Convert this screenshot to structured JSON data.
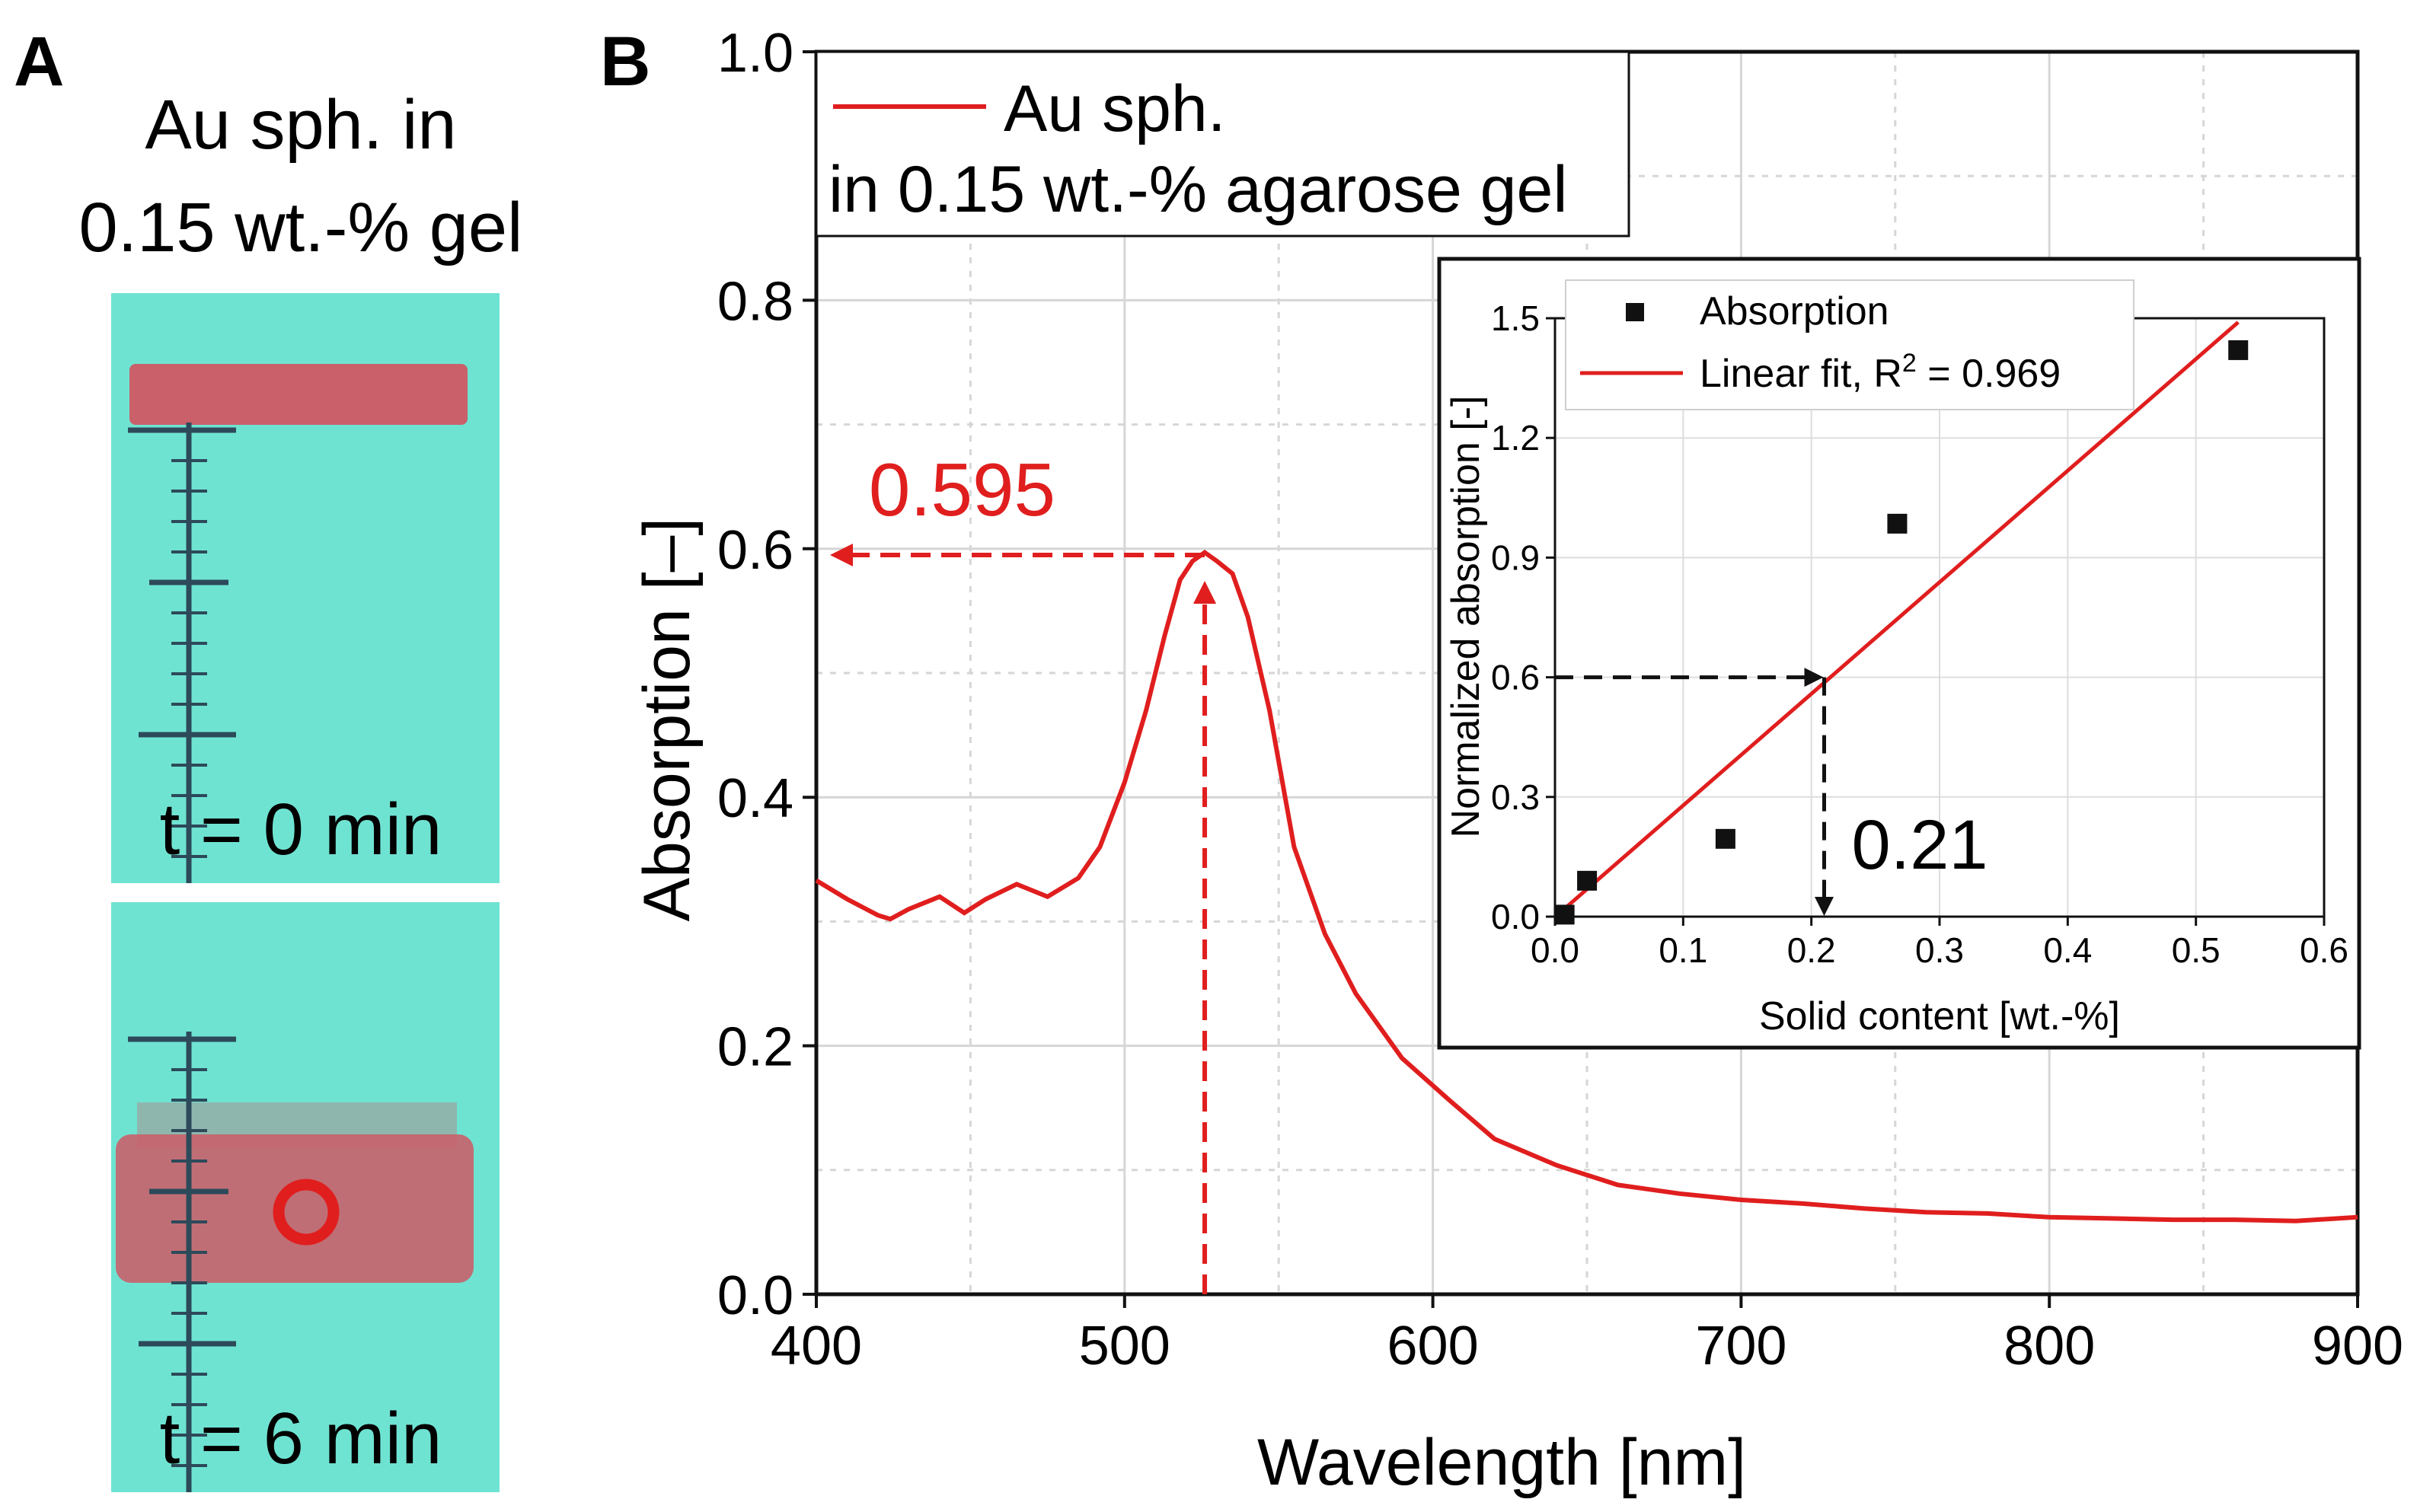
{
  "colors": {
    "curve": "#e01e1e",
    "gel_background": "#6fe3d2",
    "gel_sample": "#c9606a",
    "ruler": "#2c4a5a",
    "black": "#111111",
    "grid": "#d6d6d6"
  },
  "panel_a": {
    "label": "A",
    "title_line1": "Au sph. in",
    "title_line2": "0.15 wt.-% gel",
    "photo_top_time": "t = 0 min",
    "photo_bottom_time": "t = 6 min"
  },
  "panel_b": {
    "label": "B"
  },
  "chart_data": [
    {
      "type": "line",
      "title": "",
      "xlabel": "Wavelength [nm]",
      "ylabel": "Absorption [–]",
      "xlim": [
        400,
        900
      ],
      "ylim": [
        0.0,
        1.0
      ],
      "x_ticks": [
        "400",
        "500",
        "600",
        "700",
        "800",
        "900"
      ],
      "y_ticks": [
        "0.0",
        "0.2",
        "0.4",
        "0.6",
        "0.8",
        "1.0"
      ],
      "x_tick_values": [
        400,
        500,
        600,
        700,
        800,
        900
      ],
      "y_tick_values": [
        0.0,
        0.2,
        0.4,
        0.6,
        0.8,
        1.0
      ],
      "grid": true,
      "legend_position": "top-left",
      "legend_line1": "Au sph.",
      "legend_line2": "in 0.15 wt.-% agarose gel",
      "series": [
        {
          "name": "Au sph. in 0.15 wt.-% agarose gel",
          "x": [
            400,
            410,
            420,
            424,
            430,
            440,
            448,
            455,
            465,
            475,
            485,
            492,
            500,
            507,
            513,
            518,
            522,
            526,
            530,
            535,
            540,
            547,
            555,
            565,
            575,
            590,
            605,
            620,
            640,
            660,
            680,
            700,
            720,
            740,
            760,
            780,
            800,
            820,
            840,
            860,
            880,
            900
          ],
          "y": [
            0.333,
            0.318,
            0.305,
            0.302,
            0.31,
            0.32,
            0.307,
            0.318,
            0.33,
            0.32,
            0.335,
            0.36,
            0.412,
            0.47,
            0.53,
            0.575,
            0.59,
            0.597,
            0.59,
            0.58,
            0.545,
            0.47,
            0.36,
            0.29,
            0.242,
            0.19,
            0.157,
            0.125,
            0.104,
            0.088,
            0.081,
            0.076,
            0.073,
            0.069,
            0.066,
            0.065,
            0.062,
            0.061,
            0.06,
            0.06,
            0.059,
            0.062
          ]
        }
      ],
      "annotation_peak_value": "0.595",
      "annotation_peak_x": 526,
      "annotation_peak_y": 0.595
    },
    {
      "type": "scatter",
      "title": "",
      "xlabel": "Solid content [wt.-%]",
      "ylabel": "Normalized absorption [-]",
      "xlim": [
        0.0,
        0.6
      ],
      "ylim": [
        0.0,
        1.5
      ],
      "x_ticks": [
        "0.0",
        "0.1",
        "0.2",
        "0.3",
        "0.4",
        "0.5",
        "0.6"
      ],
      "y_ticks": [
        "0.0",
        "0.3",
        "0.6",
        "0.9",
        "1.2",
        "1.5"
      ],
      "x_tick_values": [
        0.0,
        0.1,
        0.2,
        0.3,
        0.4,
        0.5,
        0.6
      ],
      "y_tick_values": [
        0.0,
        0.3,
        0.6,
        0.9,
        1.2,
        1.5
      ],
      "grid": true,
      "legend_position": "top-left",
      "legend_scatter_label": "Absorption",
      "legend_fit_prefix": "Linear fit, R",
      "legend_fit_sup": "2",
      "legend_fit_suffix": " = 0.969",
      "series": [
        {
          "name": "Absorption",
          "x": [
            0.0075,
            0.025,
            0.133,
            0.267,
            0.533
          ],
          "y": [
            0.005,
            0.09,
            0.195,
            0.985,
            1.42
          ]
        },
        {
          "name": "Linear fit, R2 = 0.969",
          "x": [
            0.0075,
            0.533
          ],
          "y": [
            0.02,
            1.49
          ]
        }
      ],
      "annotation_x_value": "0.21",
      "annotation_point": [
        0.21,
        0.6
      ]
    }
  ]
}
